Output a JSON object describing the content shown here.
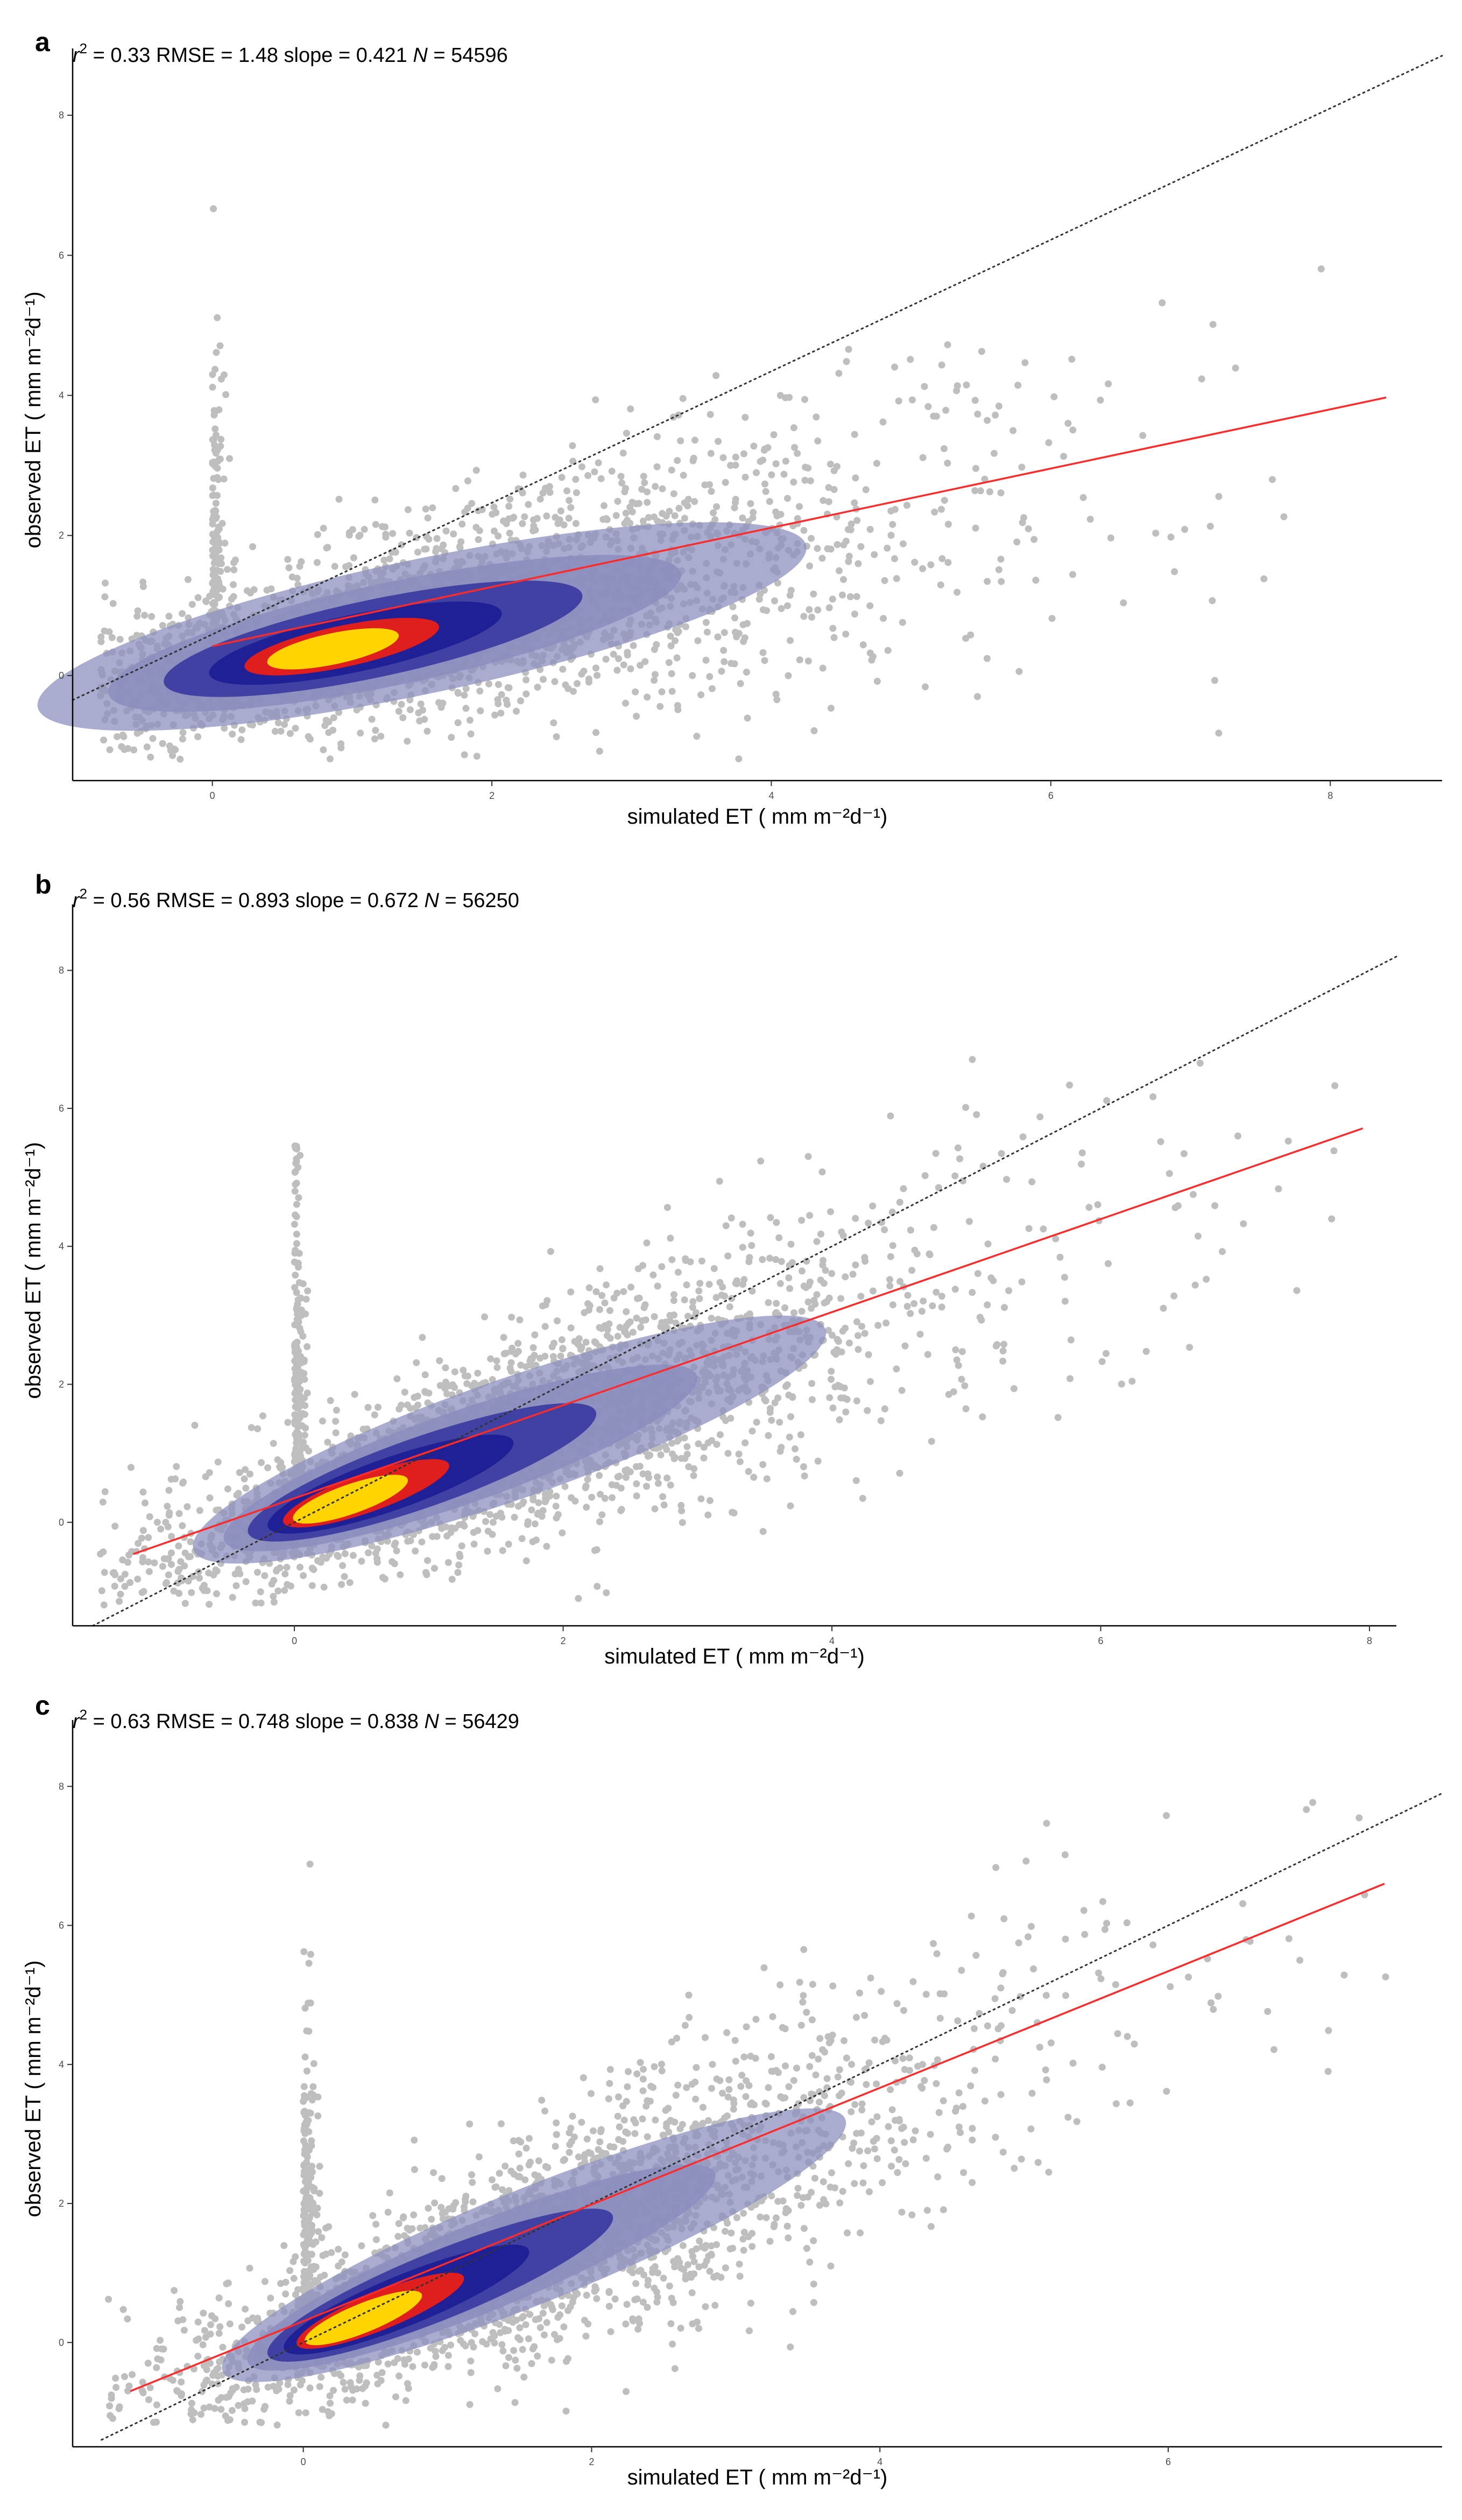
{
  "colors": {
    "points": "#bebebe",
    "regression_line": "#ff2a2a",
    "identity_line": "#333333",
    "density_low": "#8c8fbf",
    "density_mid": "#1f1f96",
    "density_core": "#e01e1e",
    "density_peak": "#ffd400"
  },
  "chart_data": [
    {
      "panel": "a",
      "type": "scatter",
      "stats": {
        "r2_label": "r",
        "r2_exp": "2",
        "r2_value": " = 0.33  RMSE = 1.48  slope = 0.421  ",
        "n_label": "N",
        "n_value": " = 54596"
      },
      "xlabel": "simulated ET ( mm m⁻²d⁻¹)",
      "ylabel": "observed ET ( mm m⁻²d⁻¹)",
      "xlim": [
        -1.0,
        8.8
      ],
      "ylim": [
        -1.5,
        8.8
      ],
      "x_ticks": [
        "0",
        "2",
        "4",
        "6",
        "8"
      ],
      "y_ticks": [
        "0",
        "2",
        "4",
        "6",
        "8"
      ],
      "x_tick_values": [
        0,
        2,
        4,
        6,
        8
      ],
      "y_tick_values": [
        0,
        2,
        4,
        6,
        8
      ],
      "identity_line": {
        "x": [
          -1.0,
          8.8
        ],
        "y": [
          -0.35,
          8.85
        ]
      },
      "regression_line": {
        "x": [
          0,
          8.4
        ],
        "y": [
          0.42,
          3.97
        ]
      },
      "density_cloud": {
        "center": [
          1.5,
          0.7
        ],
        "spread": [
          1.6,
          0.9
        ],
        "slope": 0.42,
        "intercept": 0.1
      },
      "core_point": [
        0.8,
        0.35
      ],
      "n_points_drawn": 2600,
      "grid": false,
      "legend": "none"
    },
    {
      "panel": "b",
      "type": "scatter",
      "stats": {
        "r2_label": "r",
        "r2_exp": "2",
        "r2_value": " = 0.56  RMSE = 0.893  slope = 0.672  ",
        "n_label": "N",
        "n_value": " = 56250"
      },
      "xlabel": "simulated ET ( mm m⁻²d⁻¹)",
      "ylabel": "observed ET ( mm m⁻²d⁻¹)",
      "xlim": [
        -1.65,
        8.2
      ],
      "ylim": [
        -1.5,
        8.8
      ],
      "x_ticks": [
        "0",
        "2",
        "4",
        "6",
        "8"
      ],
      "y_ticks": [
        "0",
        "2",
        "4",
        "6",
        "8"
      ],
      "x_tick_values": [
        0,
        2,
        4,
        6,
        8
      ],
      "y_tick_values": [
        0,
        2,
        4,
        6,
        8
      ],
      "identity_line": {
        "x": [
          -1.5,
          8.2
        ],
        "y": [
          -1.5,
          8.2
        ]
      },
      "regression_line": {
        "x": [
          -1.2,
          7.95
        ],
        "y": [
          -0.46,
          5.71
        ]
      },
      "density_cloud": {
        "center": [
          1.6,
          1.2
        ],
        "spread": [
          1.4,
          0.8
        ],
        "slope": 0.68,
        "intercept": 0.1
      },
      "core_point": [
        0.3,
        0.25
      ],
      "n_points_drawn": 2600,
      "grid": false,
      "legend": "none"
    },
    {
      "panel": "c",
      "type": "scatter",
      "stats": {
        "r2_label": "r",
        "r2_exp": "2",
        "r2_value": " = 0.63  RMSE = 0.748  slope = 0.838  ",
        "n_label": "N",
        "n_value": " = 56429"
      },
      "xlabel": "simulated ET ( mm m⁻²d⁻¹)",
      "ylabel": "observed ET ( mm m⁻²d⁻¹)",
      "xlim": [
        -1.6,
        7.9
      ],
      "ylim": [
        -1.5,
        8.8
      ],
      "x_ticks": [
        "0",
        "2",
        "4",
        "6"
      ],
      "y_ticks": [
        "0",
        "2",
        "4",
        "6",
        "8"
      ],
      "x_tick_values": [
        0,
        2,
        4,
        6
      ],
      "y_tick_values": [
        0,
        2,
        4,
        6,
        8
      ],
      "identity_line": {
        "x": [
          -1.4,
          7.9
        ],
        "y": [
          -1.4,
          7.9
        ]
      },
      "regression_line": {
        "x": [
          -1.2,
          7.5
        ],
        "y": [
          -0.7,
          6.6
        ]
      },
      "density_cloud": {
        "center": [
          1.6,
          1.4
        ],
        "spread": [
          1.3,
          0.75
        ],
        "slope": 0.84,
        "intercept": 0.05
      },
      "core_point": [
        0.3,
        0.25
      ],
      "n_points_drawn": 2600,
      "grid": false,
      "legend": "none"
    }
  ]
}
